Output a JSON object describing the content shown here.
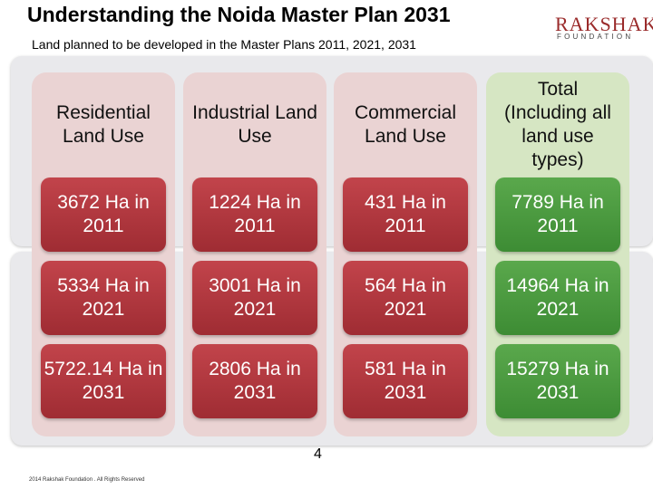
{
  "header": {
    "title": "Understanding the Noida Master Plan 2031",
    "subtitle": "Land planned to be developed in the Master Plans 2011, 2021, 2031"
  },
  "logo": {
    "name": "RAKSHAK",
    "tagline": "FOUNDATION",
    "brand_color": "#9a2b2b"
  },
  "table": {
    "columns": [
      {
        "header": "Residential Land Use",
        "cells": [
          "3672 Ha in 2011",
          "5334 Ha in 2021",
          "5722.14 Ha in 2031"
        ]
      },
      {
        "header": "Industrial Land Use",
        "cells": [
          "1224 Ha in 2011",
          "3001 Ha in 2021",
          "2806 Ha in 2031"
        ]
      },
      {
        "header": "Commercial Land Use",
        "cells": [
          "431 Ha in 2011",
          "564 Ha in 2021",
          "581 Ha in 2031"
        ]
      },
      {
        "header": "Total (Including all land use types)",
        "cells": [
          "7789 Ha in 2011",
          "14964 Ha in 2021",
          "15279 Ha in 2031"
        ]
      }
    ],
    "colors": {
      "cell_red": "#b0373e",
      "cell_green": "#4a9a3e",
      "column_pink": "#ead3d3",
      "column_green": "#d6e6c3"
    }
  },
  "footer": {
    "copyright": "2014 Rakshak Foundation . All Rights Reserved",
    "page_number": "4"
  }
}
